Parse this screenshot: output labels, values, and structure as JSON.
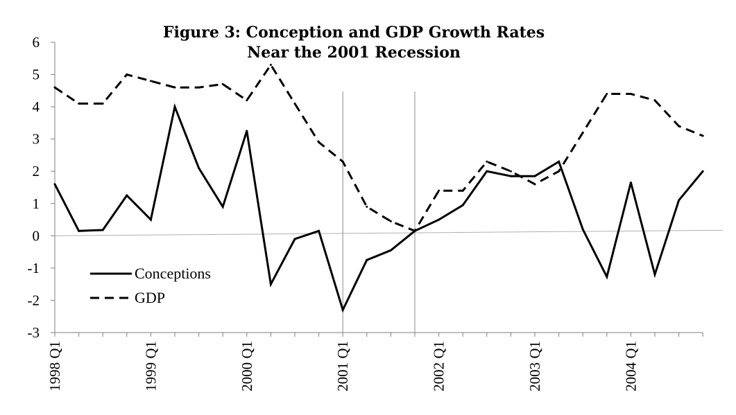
{
  "chart_data": {
    "type": "line",
    "title": "Figure 3: Conception and GDP Growth Rates",
    "subtitle": "Near the 2001 Recession",
    "xlabel": "",
    "ylabel": "",
    "ylim": [
      -3,
      6
    ],
    "yticks": [
      "6",
      "5",
      "4",
      "3",
      "2",
      "1",
      "0",
      "-1",
      "-2",
      "-3"
    ],
    "x": [
      "1998 Q1",
      "1998 Q2",
      "1998 Q3",
      "1998 Q4",
      "1999 Q1",
      "1999 Q2",
      "1999 Q3",
      "1999 Q4",
      "2000 Q1",
      "2000 Q2",
      "2000 Q3",
      "2000 Q4",
      "2001 Q1",
      "2001 Q2",
      "2001 Q3",
      "2001 Q4",
      "2002 Q1",
      "2002 Q2",
      "2002 Q3",
      "2002 Q4",
      "2003 Q1",
      "2003 Q2",
      "2003 Q3",
      "2003 Q4",
      "2004 Q1",
      "2004 Q2",
      "2004 Q3",
      "2004 Q4"
    ],
    "xtick_labels": [
      "1998 Q1",
      "1999 Q1",
      "2000 Q1",
      "2001 Q1",
      "2002 Q1",
      "2003 Q1",
      "2004 Q1"
    ],
    "recession_markers": [
      "2001 Q1",
      "2001 Q4"
    ],
    "grid": false,
    "legend": "inside lower-left",
    "series": [
      {
        "name": "Conceptions",
        "style": "solid",
        "color": "#000000",
        "values": [
          1.6,
          0.15,
          0.18,
          1.25,
          0.5,
          4.0,
          2.1,
          0.9,
          3.25,
          -1.5,
          -0.1,
          0.15,
          -2.3,
          -0.75,
          -0.45,
          0.15,
          0.5,
          0.95,
          2.0,
          1.85,
          1.85,
          2.3,
          0.2,
          -1.27,
          1.65,
          -1.2,
          1.1,
          2.0
        ]
      },
      {
        "name": "GDP",
        "style": "dashed",
        "color": "#000000",
        "values": [
          4.6,
          4.1,
          4.1,
          5.0,
          4.8,
          4.6,
          4.6,
          4.7,
          4.2,
          5.3,
          4.1,
          2.9,
          2.3,
          0.9,
          0.45,
          0.15,
          1.4,
          1.4,
          2.3,
          2.0,
          1.6,
          2.0,
          3.2,
          4.4,
          4.4,
          4.2,
          3.4,
          3.1
        ]
      }
    ]
  }
}
